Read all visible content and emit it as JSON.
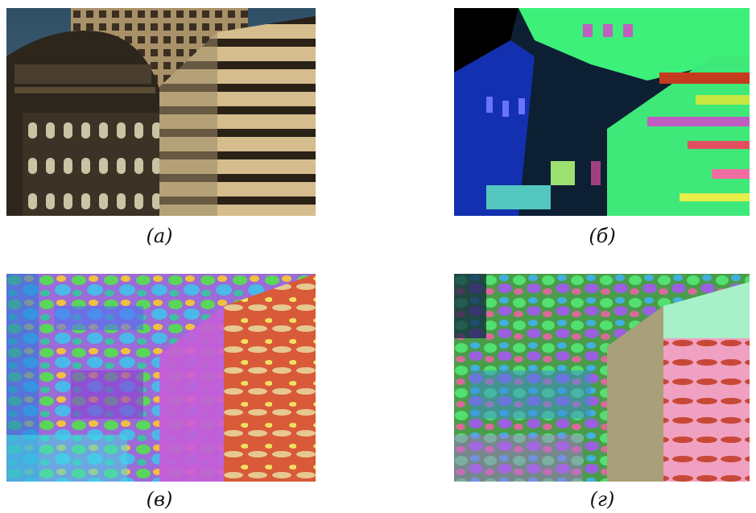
{
  "figure": {
    "panels": [
      {
        "id": "a",
        "label": "(а)",
        "description_icon": "photo-original"
      },
      {
        "id": "b",
        "label": "(б)",
        "description_icon": "segmentation-result"
      },
      {
        "id": "c",
        "label": "(в)",
        "description_icon": "segmentation-result"
      },
      {
        "id": "d",
        "label": "(г)",
        "description_icon": "segmentation-result"
      }
    ]
  }
}
